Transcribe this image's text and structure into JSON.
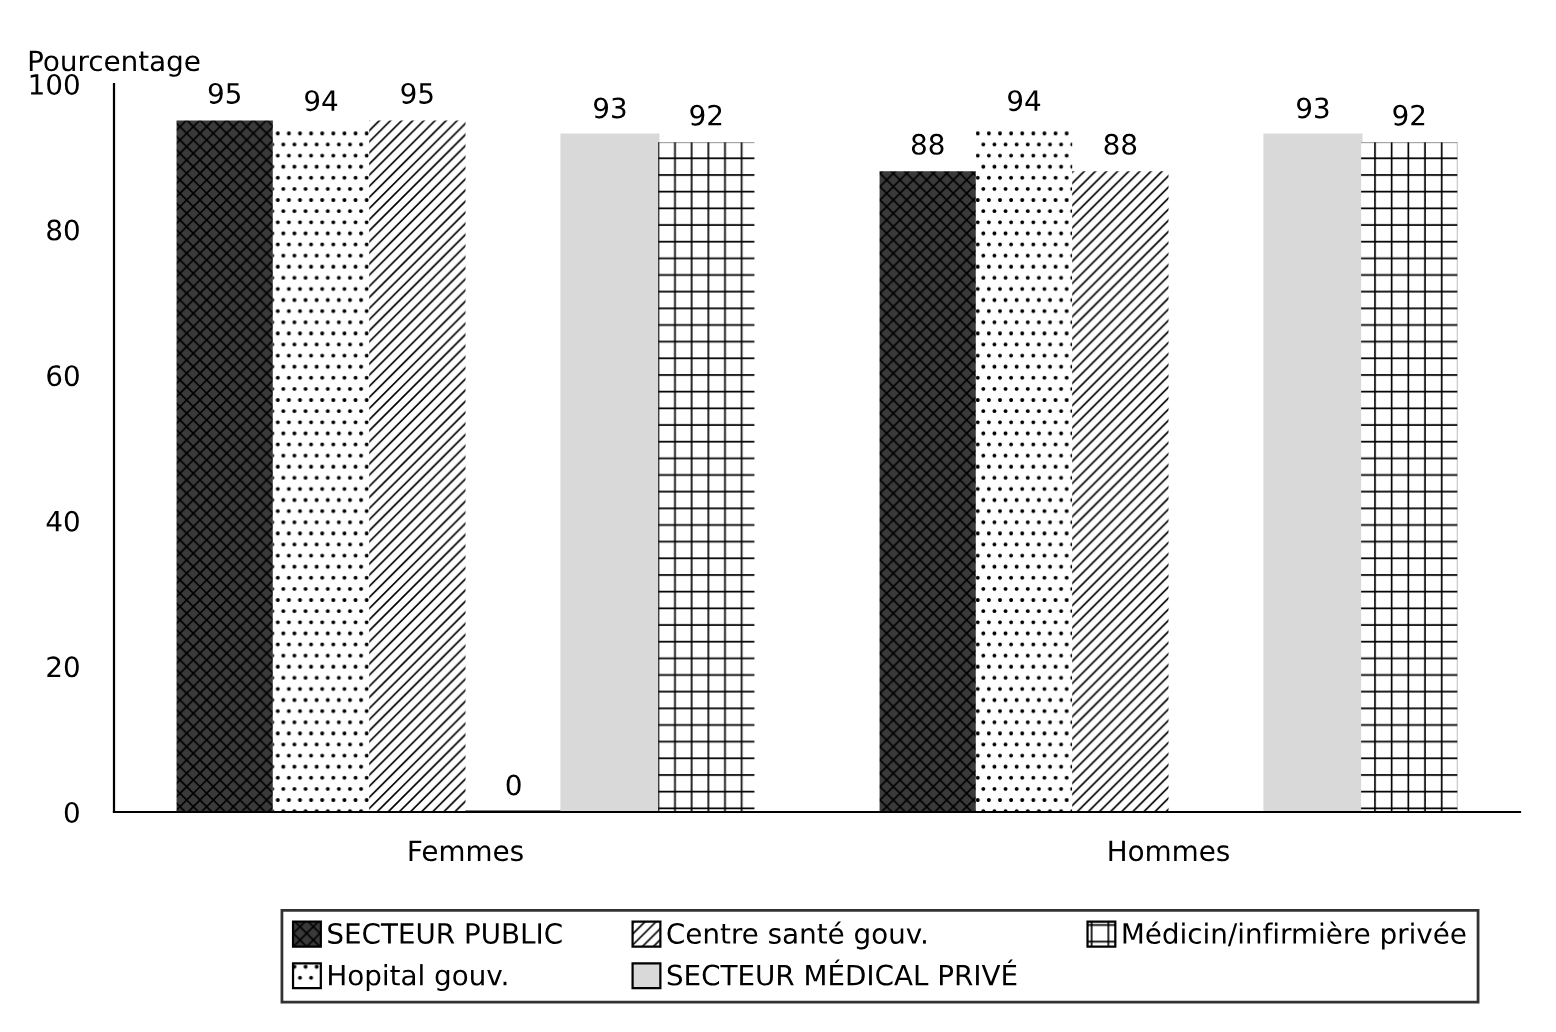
{
  "chart_data": {
    "type": "bar",
    "ylabel": "Pourcentage",
    "categories": [
      "Femmes",
      "Hommes"
    ],
    "series": [
      {
        "name": "SECTEUR PUBLIC",
        "color": "#3a3a3a",
        "values": [
          95,
          88
        ]
      },
      {
        "name": "Hopital gouv.",
        "color": "#ffffff",
        "values": [
          94,
          94
        ]
      },
      {
        "name": "Centre santé gouv.",
        "color": "#ffffff",
        "values": [
          95,
          88
        ]
      },
      {
        "color": "#000000",
        "values": [
          0,
          null
        ],
        "value_labels": [
          "0",
          null
        ]
      },
      {
        "name": "SECTEUR MÉDICAL PRIVÉ",
        "color": "#d9d9d9",
        "values": [
          93,
          93
        ]
      },
      {
        "name": "Médicin/infirmière privée",
        "color": "#ffffff",
        "values": [
          92,
          92
        ]
      }
    ],
    "data_labels": true,
    "ylim": [
      0,
      100
    ],
    "yticks": [
      0,
      20,
      40,
      60,
      80,
      100
    ],
    "grid": false,
    "legend": "bottom"
  }
}
